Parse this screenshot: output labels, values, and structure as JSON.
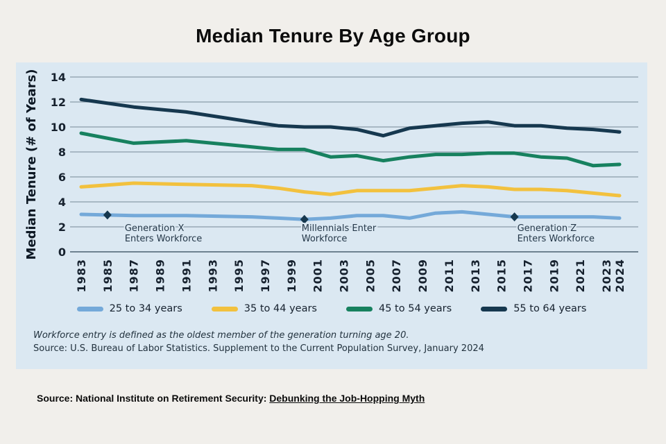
{
  "page": {
    "title": "Median Tenure By Age Group"
  },
  "footnotes": {
    "definition": "Workforce entry is defined as the oldest member of the generation turning age 20.",
    "source": "Source: U.S. Bureau of Labor Statistics. Supplement to the Current Population Survey, January 2024"
  },
  "source_note": {
    "prefix": "Source: National Institute on Retirement Security: ",
    "link_text": "Debunking the Job-Hopping Myth"
  },
  "colors": {
    "page_bg": "#f1efeb",
    "panel_bg": "#dbe8f2",
    "grid": "#8a9ba8",
    "zero_line": "#6e8290",
    "axis_text": "#16212e",
    "annotation_text": "#243748",
    "annotation_marker": "#16384f",
    "title_text": "#0c0c0c"
  },
  "chart_data": {
    "type": "line",
    "title": "Median Tenure By Age Group",
    "xlabel": "",
    "ylabel": "Median Tenure (# of Years)",
    "ylim": [
      0,
      14
    ],
    "yticks": [
      0,
      2,
      4,
      6,
      8,
      10,
      12,
      14
    ],
    "xlim": [
      1983,
      2024
    ],
    "xtick_years": [
      1983,
      1985,
      1987,
      1989,
      1991,
      1993,
      1995,
      1997,
      1999,
      2001,
      2003,
      2005,
      2007,
      2009,
      2011,
      2013,
      2015,
      2017,
      2019,
      2021,
      2023,
      2024
    ],
    "xtick_labels": [
      "1983",
      "1985",
      "1987",
      "1989",
      "1991",
      "1993",
      "1995",
      "1997",
      "1999",
      "2001",
      "2003",
      "2005",
      "2007",
      "2009",
      "2011",
      "2013",
      "2015",
      "2017",
      "2019",
      "2021",
      "2023",
      "2024"
    ],
    "grid": true,
    "legend_position": "bottom",
    "x": [
      1983,
      1987,
      1991,
      1996,
      1998,
      2000,
      2002,
      2004,
      2006,
      2008,
      2010,
      2012,
      2014,
      2016,
      2018,
      2020,
      2022,
      2024
    ],
    "series": [
      {
        "name": "25 to 34 years",
        "color": "#74a9d9",
        "values": [
          3.0,
          2.9,
          2.9,
          2.8,
          2.7,
          2.6,
          2.7,
          2.9,
          2.9,
          2.7,
          3.1,
          3.2,
          3.0,
          2.8,
          2.8,
          2.8,
          2.8,
          2.7
        ]
      },
      {
        "name": "35 to 44 years",
        "color": "#f2c13e",
        "values": [
          5.2,
          5.5,
          5.4,
          5.3,
          5.1,
          4.8,
          4.6,
          4.9,
          4.9,
          4.9,
          5.1,
          5.3,
          5.2,
          5.0,
          5.0,
          4.9,
          4.7,
          4.5
        ]
      },
      {
        "name": "45 to 54 years",
        "color": "#17815f",
        "values": [
          9.5,
          8.7,
          8.9,
          8.4,
          8.2,
          8.2,
          7.6,
          7.7,
          7.3,
          7.6,
          7.8,
          7.8,
          7.9,
          7.9,
          7.6,
          7.5,
          6.9,
          7.0
        ]
      },
      {
        "name": "55 to 64 years",
        "color": "#16384f",
        "values": [
          12.2,
          11.6,
          11.2,
          10.4,
          10.1,
          10.0,
          10.0,
          9.8,
          9.3,
          9.9,
          10.1,
          10.3,
          10.4,
          10.1,
          10.1,
          9.9,
          9.8,
          9.6
        ]
      }
    ],
    "annotations": [
      {
        "year": 1985,
        "value": 2.95,
        "dx": 25,
        "lines": [
          "Generation X",
          "Enters Workforce"
        ]
      },
      {
        "year": 2000,
        "value": 2.6,
        "dx": -4,
        "lines": [
          "Millennials Enter",
          "Workforce"
        ]
      },
      {
        "year": 2016,
        "value": 2.8,
        "dx": 4,
        "lines": [
          "Generation Z",
          "Enters Workforce"
        ]
      }
    ]
  }
}
